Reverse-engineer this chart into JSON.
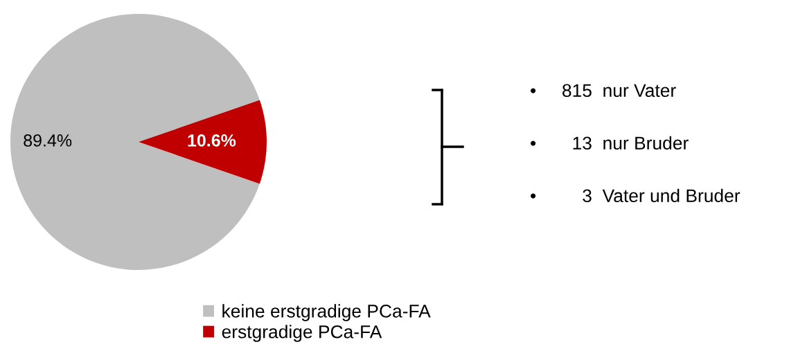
{
  "chart_data": {
    "type": "pie",
    "categories": [
      "keine erstgradige PCa-FA",
      "erstgradige PCa-FA"
    ],
    "values": [
      89.4,
      10.6
    ],
    "colors": [
      "#bfbfbf",
      "#c00000"
    ],
    "value_labels": [
      "89.4%",
      "10.6%"
    ],
    "annotations": [
      "•     815  nur Vater",
      "•       13  nur Bruder",
      "•         3  Vater und Bruder"
    ],
    "legend": "bottom"
  }
}
